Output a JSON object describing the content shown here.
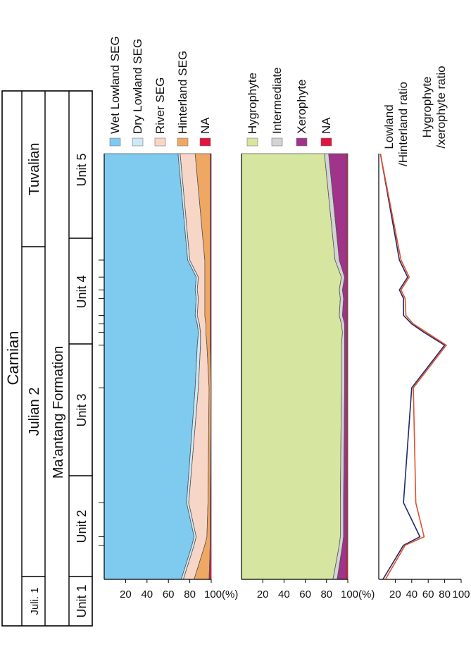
{
  "colors": {
    "wet_lowland": "#7fcbef",
    "dry_lowland": "#cde8f7",
    "river": "#f8d6c7",
    "hinterland": "#efa864",
    "na_red": "#e0143c",
    "hygrophyte": "#d6e6a0",
    "intermediate": "#d2d3d4",
    "xerophyte": "#a0338a",
    "line_lowland": "#1d2a6b",
    "line_hygro": "#e2502a",
    "red_label": "#e2502a"
  },
  "strat": {
    "stage": "Carnian",
    "substages": {
      "juli1": "Juli. 1",
      "julian2": "Julian 2",
      "tuvalian": "Tuvalian"
    },
    "formation": "Ma'antang  Formation",
    "units": [
      "Unit 1",
      "Unit 2",
      "Unit 3",
      "Unit 4",
      "Unit 5"
    ]
  },
  "chart_data": [
    {
      "type": "area",
      "stacked": true,
      "orientation": "depth-vertical",
      "legend": [
        "Wet Lowland SEG",
        "Dry Lowland SEG",
        "River SEG",
        "Hinterland SEG",
        "NA"
      ],
      "ticks": [
        "20",
        "40",
        "60",
        "80",
        "100(%)"
      ],
      "xlim": [
        0,
        100
      ],
      "samples": [
        0,
        0.08,
        0.1,
        0.18,
        0.45,
        0.55,
        0.58,
        0.6,
        0.62,
        0.66,
        0.68,
        0.71,
        0.75,
        1.0
      ],
      "series": [
        {
          "name": "Wet Lowland SEG",
          "values": [
            72,
            82,
            84,
            77,
            85,
            87,
            88,
            87,
            85,
            86,
            85,
            86,
            78,
            69
          ]
        },
        {
          "name": "Dry Lowland SEG",
          "values": [
            2,
            2,
            2,
            2,
            3,
            3,
            2,
            2,
            2,
            2,
            2,
            2,
            2,
            2
          ]
        },
        {
          "name": "River SEG",
          "values": [
            10,
            10,
            10,
            18,
            10,
            6,
            5,
            6,
            7,
            6,
            7,
            6,
            14,
            14
          ]
        },
        {
          "name": "Hinterland SEG",
          "values": [
            14,
            5,
            3,
            2,
            2,
            3,
            4,
            4,
            5,
            5,
            5,
            5,
            5,
            14
          ]
        },
        {
          "name": "NA",
          "values": [
            2,
            1,
            1,
            1,
            0,
            1,
            1,
            1,
            1,
            1,
            1,
            1,
            1,
            1
          ]
        }
      ]
    },
    {
      "type": "area",
      "stacked": true,
      "orientation": "depth-vertical",
      "legend": [
        "Hygrophyte",
        "Intermediate",
        "Xerophyte",
        "NA"
      ],
      "ticks": [
        "20",
        "40",
        "60",
        "80",
        "100(%)"
      ],
      "xlim": [
        0,
        100
      ],
      "samples": [
        0,
        0.08,
        0.1,
        0.18,
        0.45,
        0.55,
        0.58,
        0.6,
        0.62,
        0.66,
        0.68,
        0.71,
        0.75,
        1.0
      ],
      "series": [
        {
          "name": "Hygrophyte",
          "values": [
            86,
            92,
            93,
            93,
            94,
            94,
            95,
            94,
            92,
            93,
            92,
            94,
            88,
            78
          ]
        },
        {
          "name": "Intermediate",
          "values": [
            4,
            3,
            3,
            3,
            3,
            3,
            2,
            3,
            3,
            3,
            3,
            3,
            4,
            4
          ]
        },
        {
          "name": "Xerophyte",
          "values": [
            8,
            4,
            3,
            3,
            2,
            2,
            2,
            2,
            4,
            3,
            4,
            2,
            7,
            17
          ]
        },
        {
          "name": "NA",
          "values": [
            2,
            1,
            1,
            1,
            1,
            1,
            1,
            1,
            1,
            1,
            1,
            1,
            1,
            1
          ]
        }
      ]
    },
    {
      "type": "line",
      "orientation": "depth-vertical",
      "ticks": [
        "20",
        "40",
        "60",
        "80",
        "100"
      ],
      "xlim": [
        0,
        100
      ],
      "series": [
        {
          "name": "Lowland /Hinterland ratio",
          "points": [
            [
              0,
              5
            ],
            [
              0.08,
              30
            ],
            [
              0.1,
              50
            ],
            [
              0.18,
              30
            ],
            [
              0.45,
              40
            ],
            [
              0.55,
              80
            ],
            [
              0.58,
              55
            ],
            [
              0.6,
              40
            ],
            [
              0.62,
              30
            ],
            [
              0.66,
              30
            ],
            [
              0.68,
              25
            ],
            [
              0.71,
              35
            ],
            [
              0.75,
              25
            ],
            [
              1.0,
              2
            ]
          ]
        },
        {
          "name": "Hygrophyte /xerophyte ratio",
          "points": [
            [
              0,
              8
            ],
            [
              0.08,
              32
            ],
            [
              0.1,
              55
            ],
            [
              0.18,
              45
            ],
            [
              0.45,
              42
            ],
            [
              0.55,
              82
            ],
            [
              0.58,
              58
            ],
            [
              0.6,
              42
            ],
            [
              0.62,
              33
            ],
            [
              0.66,
              32
            ],
            [
              0.68,
              27
            ],
            [
              0.71,
              37
            ],
            [
              0.75,
              27
            ],
            [
              1.0,
              2
            ]
          ]
        }
      ],
      "labels": {
        "lowland_1": "Lowland",
        "lowland_2": "/Hinterland ratio",
        "hygro_1": "Hygrophyte",
        "hygro_2": "/xerophyte ratio"
      }
    }
  ]
}
